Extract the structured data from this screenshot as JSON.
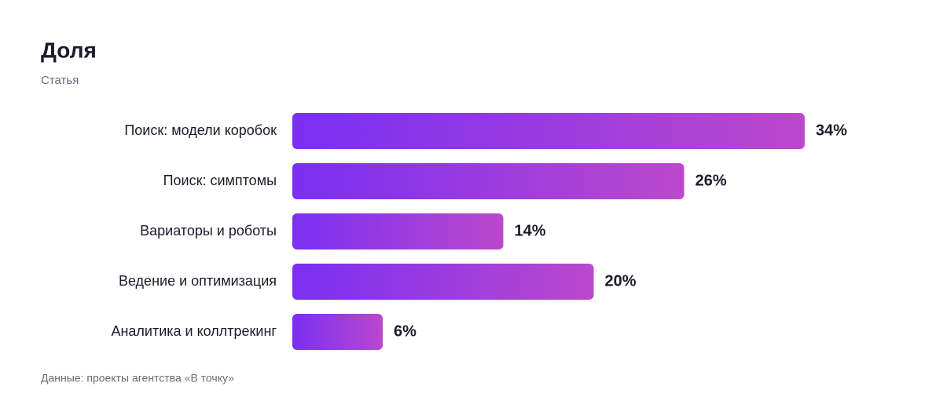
{
  "chart_data": {
    "type": "bar",
    "orientation": "horizontal",
    "title": "Доля",
    "subtitle": "Статья",
    "categories": [
      "Поиск: модели коробок",
      "Поиск: симптомы",
      "Вариаторы и роботы",
      "Ведение и оптимизация",
      "Аналитика и коллтрекинг"
    ],
    "values": [
      34,
      26,
      14,
      20,
      6
    ],
    "value_labels": [
      "34%",
      "26%",
      "14%",
      "20%",
      "6%"
    ],
    "gradient": [
      "#7a2ff2",
      "#bb48cc"
    ],
    "note": "Данные: проекты агентства «В точку»"
  }
}
